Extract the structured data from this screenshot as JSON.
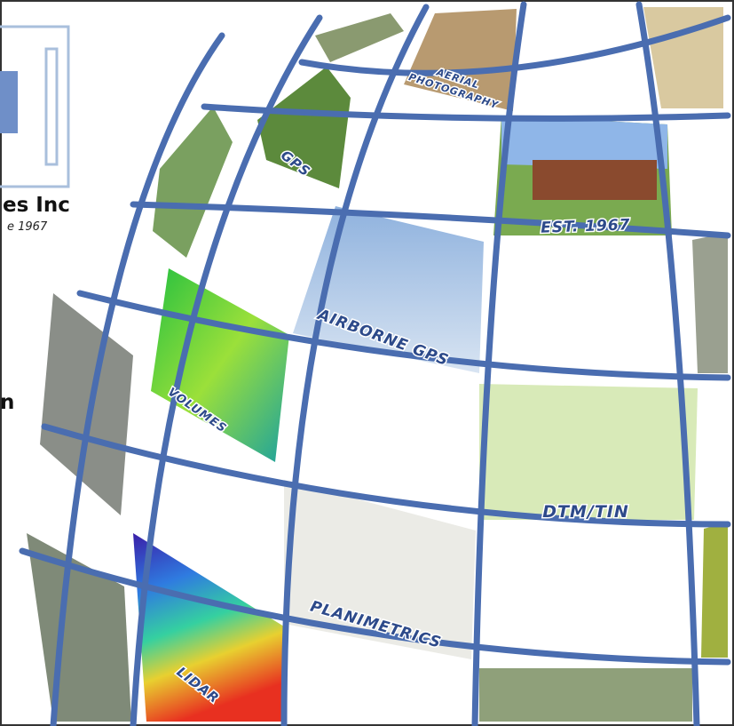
{
  "logo": {
    "name": "es Inc",
    "tagline": "e 1967",
    "fragment": "n"
  },
  "tiles": [
    {
      "lines": [
        "AERIAL",
        "PHOTOGRAPHY"
      ]
    },
    {
      "lines": [
        "GPS"
      ]
    },
    {
      "lines": [
        "EST. 1967"
      ]
    },
    {
      "lines": [
        "AIRBORNE GPS"
      ]
    },
    {
      "lines": [
        "VOLUMES"
      ]
    },
    {
      "lines": [
        "DTM/TIN"
      ]
    },
    {
      "lines": [
        "PLANIMETRICS"
      ]
    },
    {
      "lines": [
        "LIDAR"
      ]
    }
  ]
}
